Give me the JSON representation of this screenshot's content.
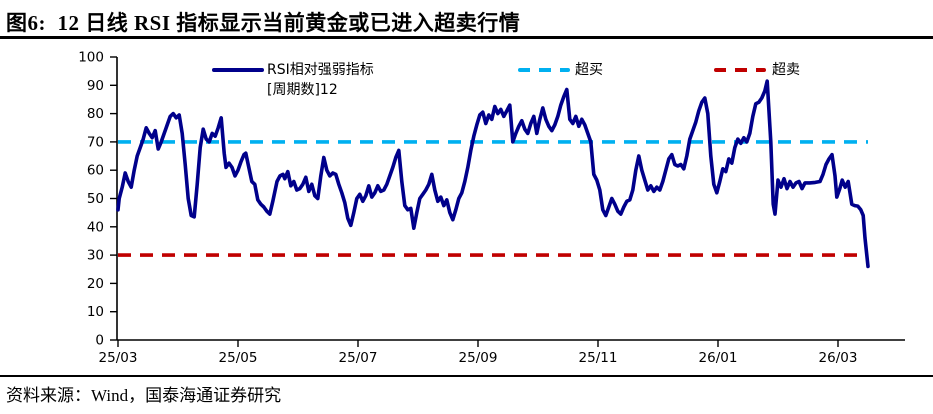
{
  "header": {
    "title": "图6:  12 日线 RSI 指标显示当前黄金或已进入超卖行情"
  },
  "footer": {
    "source": "资料来源：Wind，国泰海通证券研究"
  },
  "colors": {
    "rsi_line": "#00008B",
    "overbought": "#00B0F0",
    "oversold": "#C00000",
    "axis": "#000000"
  },
  "chart_data": {
    "type": "line",
    "grid": false,
    "legend": {
      "position": "top",
      "items": [
        {
          "label": "RSI相对强弱指标",
          "sublabel": "[周期数]12",
          "color": "#00008B",
          "style": "solid"
        },
        {
          "label": "超买",
          "color": "#00B0F0",
          "style": "dashed",
          "value": 70
        },
        {
          "label": "超卖",
          "color": "#C00000",
          "style": "dashed",
          "value": 30
        }
      ]
    },
    "x_axis": {
      "unit": "months since 25/03 (labels are YY/MM)",
      "tick_labels": [
        "25/03",
        "25/05",
        "25/07",
        "25/09",
        "25/11",
        "26/01",
        "26/03"
      ],
      "tick_positions_months": [
        0,
        2,
        4,
        6,
        8,
        10,
        12
      ],
      "range_months": [
        0,
        13.1
      ]
    },
    "y_axis": {
      "ticks": [
        0,
        10,
        20,
        30,
        40,
        50,
        60,
        70,
        80,
        90,
        100
      ],
      "range": [
        0,
        100
      ]
    },
    "reference_lines": [
      {
        "name": "超买",
        "value": 70,
        "color": "#00B0F0",
        "style": "dashed"
      },
      {
        "name": "超卖",
        "value": 30,
        "color": "#C00000",
        "style": "dashed"
      }
    ],
    "series": [
      {
        "name": "RSI相对强弱指标",
        "period_label": "[周期数]12",
        "color": "#00008B",
        "points": [
          [
            0,
            46
          ],
          [
            0.02,
            50
          ],
          [
            0.07,
            54
          ],
          [
            0.12,
            59
          ],
          [
            0.17,
            56
          ],
          [
            0.22,
            54
          ],
          [
            0.27,
            60
          ],
          [
            0.32,
            65
          ],
          [
            0.37,
            68
          ],
          [
            0.42,
            71
          ],
          [
            0.47,
            75
          ],
          [
            0.52,
            73
          ],
          [
            0.57,
            71.5
          ],
          [
            0.62,
            74
          ],
          [
            0.67,
            67.5
          ],
          [
            0.72,
            70
          ],
          [
            0.77,
            73
          ],
          [
            0.82,
            76
          ],
          [
            0.87,
            79
          ],
          [
            0.92,
            80
          ],
          [
            0.97,
            78.5
          ],
          [
            1.02,
            79.5
          ],
          [
            1.07,
            73
          ],
          [
            1.12,
            62
          ],
          [
            1.17,
            50
          ],
          [
            1.22,
            44
          ],
          [
            1.27,
            43.5
          ],
          [
            1.32,
            55
          ],
          [
            1.37,
            68
          ],
          [
            1.42,
            74.5
          ],
          [
            1.47,
            71
          ],
          [
            1.52,
            70
          ],
          [
            1.57,
            73
          ],
          [
            1.62,
            72
          ],
          [
            1.67,
            75
          ],
          [
            1.72,
            78.5
          ],
          [
            1.77,
            66
          ],
          [
            1.8,
            61
          ],
          [
            1.85,
            62.5
          ],
          [
            1.9,
            61
          ],
          [
            1.95,
            58
          ],
          [
            2,
            60
          ],
          [
            2.05,
            63
          ],
          [
            2.1,
            65.5
          ],
          [
            2.13,
            66
          ],
          [
            2.18,
            61
          ],
          [
            2.23,
            56
          ],
          [
            2.28,
            55
          ],
          [
            2.33,
            49.5
          ],
          [
            2.38,
            48
          ],
          [
            2.43,
            47
          ],
          [
            2.48,
            45.5
          ],
          [
            2.53,
            44.5
          ],
          [
            2.58,
            49
          ],
          [
            2.65,
            56
          ],
          [
            2.7,
            58
          ],
          [
            2.75,
            58.5
          ],
          [
            2.78,
            57
          ],
          [
            2.83,
            59.5
          ],
          [
            2.88,
            54.5
          ],
          [
            2.93,
            56
          ],
          [
            2.98,
            53
          ],
          [
            3.03,
            53.5
          ],
          [
            3.08,
            55
          ],
          [
            3.13,
            57.5
          ],
          [
            3.18,
            52.5
          ],
          [
            3.23,
            55
          ],
          [
            3.28,
            51
          ],
          [
            3.33,
            50
          ],
          [
            3.38,
            58
          ],
          [
            3.43,
            64.5
          ],
          [
            3.48,
            60
          ],
          [
            3.53,
            58
          ],
          [
            3.58,
            59
          ],
          [
            3.63,
            58.5
          ],
          [
            3.68,
            55
          ],
          [
            3.73,
            52
          ],
          [
            3.78,
            48.5
          ],
          [
            3.83,
            43
          ],
          [
            3.88,
            40.5
          ],
          [
            3.93,
            45
          ],
          [
            3.98,
            50
          ],
          [
            4.03,
            51.5
          ],
          [
            4.08,
            49
          ],
          [
            4.13,
            51
          ],
          [
            4.18,
            54.5
          ],
          [
            4.23,
            50.5
          ],
          [
            4.28,
            52
          ],
          [
            4.33,
            54.5
          ],
          [
            4.38,
            52.5
          ],
          [
            4.43,
            53
          ],
          [
            4.48,
            55
          ],
          [
            4.53,
            58
          ],
          [
            4.58,
            61
          ],
          [
            4.63,
            64.5
          ],
          [
            4.68,
            67
          ],
          [
            4.73,
            56
          ],
          [
            4.78,
            47.5
          ],
          [
            4.83,
            46
          ],
          [
            4.88,
            46.5
          ],
          [
            4.93,
            39.5
          ],
          [
            4.98,
            45
          ],
          [
            5.03,
            50
          ],
          [
            5.08,
            51.5
          ],
          [
            5.13,
            53
          ],
          [
            5.18,
            55
          ],
          [
            5.23,
            58.5
          ],
          [
            5.28,
            53
          ],
          [
            5.33,
            49
          ],
          [
            5.38,
            50.5
          ],
          [
            5.43,
            47.5
          ],
          [
            5.48,
            49.5
          ],
          [
            5.53,
            45
          ],
          [
            5.58,
            42.5
          ],
          [
            5.63,
            46
          ],
          [
            5.68,
            50
          ],
          [
            5.73,
            52
          ],
          [
            5.78,
            56
          ],
          [
            5.83,
            61
          ],
          [
            5.88,
            67
          ],
          [
            5.93,
            72
          ],
          [
            5.98,
            76
          ],
          [
            6.03,
            79.5
          ],
          [
            6.08,
            80.5
          ],
          [
            6.13,
            76.5
          ],
          [
            6.18,
            79.5
          ],
          [
            6.23,
            78
          ],
          [
            6.28,
            82.5
          ],
          [
            6.33,
            80
          ],
          [
            6.38,
            81.5
          ],
          [
            6.43,
            79
          ],
          [
            6.48,
            81
          ],
          [
            6.53,
            83
          ],
          [
            6.58,
            70
          ],
          [
            6.63,
            73
          ],
          [
            6.68,
            75.5
          ],
          [
            6.73,
            77.5
          ],
          [
            6.78,
            74.5
          ],
          [
            6.83,
            73
          ],
          [
            6.88,
            76.5
          ],
          [
            6.93,
            79
          ],
          [
            6.98,
            73
          ],
          [
            7.03,
            78
          ],
          [
            7.08,
            82
          ],
          [
            7.13,
            78
          ],
          [
            7.18,
            75.5
          ],
          [
            7.23,
            74
          ],
          [
            7.28,
            76
          ],
          [
            7.33,
            79
          ],
          [
            7.38,
            83
          ],
          [
            7.43,
            86
          ],
          [
            7.48,
            88.5
          ],
          [
            7.53,
            78
          ],
          [
            7.58,
            76.5
          ],
          [
            7.63,
            79
          ],
          [
            7.68,
            75.5
          ],
          [
            7.73,
            78
          ],
          [
            7.78,
            76
          ],
          [
            7.83,
            73
          ],
          [
            7.88,
            70
          ],
          [
            7.93,
            58.5
          ],
          [
            7.98,
            56.5
          ],
          [
            8.03,
            53
          ],
          [
            8.08,
            46
          ],
          [
            8.13,
            44
          ],
          [
            8.18,
            47
          ],
          [
            8.23,
            50
          ],
          [
            8.28,
            48
          ],
          [
            8.33,
            45.5
          ],
          [
            8.38,
            44.5
          ],
          [
            8.43,
            47
          ],
          [
            8.48,
            49
          ],
          [
            8.53,
            49.5
          ],
          [
            8.58,
            53
          ],
          [
            8.63,
            60
          ],
          [
            8.68,
            65
          ],
          [
            8.73,
            60
          ],
          [
            8.78,
            56.5
          ],
          [
            8.83,
            53
          ],
          [
            8.88,
            54.5
          ],
          [
            8.93,
            52.5
          ],
          [
            8.98,
            54
          ],
          [
            9.03,
            53
          ],
          [
            9.08,
            56
          ],
          [
            9.13,
            60
          ],
          [
            9.18,
            64
          ],
          [
            9.23,
            65.5
          ],
          [
            9.28,
            62
          ],
          [
            9.33,
            61.5
          ],
          [
            9.38,
            62
          ],
          [
            9.43,
            60.5
          ],
          [
            9.48,
            65
          ],
          [
            9.53,
            71
          ],
          [
            9.58,
            74
          ],
          [
            9.63,
            77
          ],
          [
            9.68,
            81
          ],
          [
            9.73,
            84
          ],
          [
            9.78,
            85.5
          ],
          [
            9.83,
            80
          ],
          [
            9.88,
            65
          ],
          [
            9.93,
            55
          ],
          [
            9.98,
            52
          ],
          [
            10.03,
            56
          ],
          [
            10.08,
            60.5
          ],
          [
            10.13,
            59.5
          ],
          [
            10.18,
            64
          ],
          [
            10.23,
            62.5
          ],
          [
            10.28,
            68
          ],
          [
            10.33,
            71
          ],
          [
            10.38,
            69.5
          ],
          [
            10.43,
            71.5
          ],
          [
            10.48,
            70
          ],
          [
            10.53,
            73
          ],
          [
            10.58,
            79
          ],
          [
            10.63,
            83.5
          ],
          [
            10.68,
            84
          ],
          [
            10.73,
            85.5
          ],
          [
            10.78,
            88
          ],
          [
            10.82,
            91.5
          ],
          [
            10.88,
            70
          ],
          [
            10.92,
            48
          ],
          [
            10.95,
            44.5
          ],
          [
            11,
            56.5
          ],
          [
            11.05,
            54
          ],
          [
            11.1,
            57
          ],
          [
            11.15,
            53.5
          ],
          [
            11.2,
            56
          ],
          [
            11.25,
            54
          ],
          [
            11.3,
            55.5
          ],
          [
            11.35,
            56
          ],
          [
            11.4,
            53.5
          ],
          [
            11.45,
            55.5
          ],
          [
            11.53,
            55.5
          ],
          [
            11.62,
            55.7
          ],
          [
            11.7,
            56
          ],
          [
            11.75,
            58.5
          ],
          [
            11.8,
            62
          ],
          [
            11.85,
            64
          ],
          [
            11.9,
            65.5
          ],
          [
            11.95,
            58
          ],
          [
            11.98,
            50.5
          ],
          [
            12.03,
            53.5
          ],
          [
            12.07,
            56.5
          ],
          [
            12.12,
            54
          ],
          [
            12.17,
            56
          ],
          [
            12.2,
            52
          ],
          [
            12.23,
            48
          ],
          [
            12.28,
            47.5
          ],
          [
            12.33,
            47.3
          ],
          [
            12.38,
            46
          ],
          [
            12.42,
            44
          ],
          [
            12.45,
            36
          ],
          [
            12.5,
            26
          ]
        ]
      }
    ]
  }
}
